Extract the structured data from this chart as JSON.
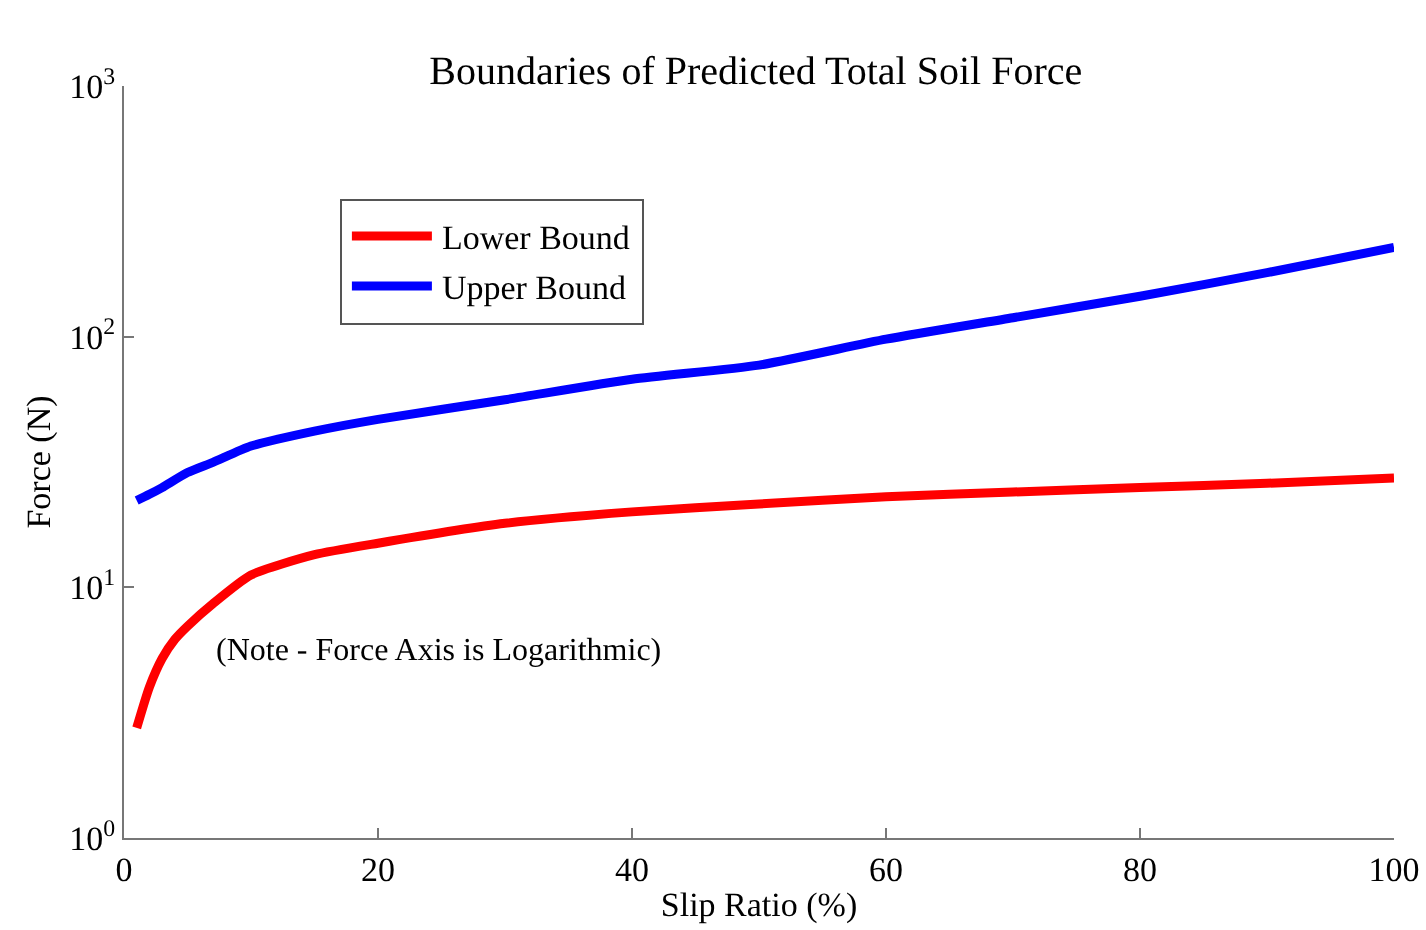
{
  "chart_data": {
    "type": "line",
    "title": "Boundaries of Predicted Total Soil Force",
    "xlabel": "Slip Ratio (%)",
    "ylabel": "Force (N)",
    "log": "y",
    "grid": false,
    "legend": "top left",
    "line_style": "solid",
    "marker": "none",
    "annotations": [
      "(Note - Force Axis is Logarithmic)"
    ],
    "xlim": [
      0,
      100
    ],
    "xticks": [
      0,
      20,
      40,
      60,
      80,
      100
    ],
    "ylim": [
      1,
      1000
    ],
    "yticks": [
      {
        "value": 1,
        "label": "10$^{0}$"
      },
      {
        "value": 10,
        "label": "10$^{1}$"
      },
      {
        "value": 100,
        "label": "10$^{2}$"
      },
      {
        "value": 1000,
        "label": "10$^{3}$"
      }
    ],
    "series": [
      {
        "name": "Lower Bound",
        "color": "#ff0000",
        "x": [
          1,
          2,
          3,
          4,
          5,
          7,
          10,
          15,
          20,
          30,
          40,
          50,
          60,
          70,
          80,
          90,
          100
        ],
        "values": [
          2.75,
          4,
          5.2,
          6.2,
          7,
          8.6,
          11.2,
          13.5,
          15,
          18,
          20,
          21.5,
          23,
          24,
          25,
          26,
          27.3
        ]
      },
      {
        "name": "Upper Bound",
        "color": "#0000ff",
        "x": [
          1,
          2,
          3,
          5,
          7,
          10,
          15,
          20,
          30,
          40,
          50,
          60,
          70,
          80,
          90,
          100
        ],
        "values": [
          22.2,
          23.5,
          25,
          28.7,
          31.5,
          36.6,
          42,
          46.8,
          56,
          67.6,
          77,
          97.7,
          119,
          145,
          180,
          227
        ]
      }
    ]
  }
}
